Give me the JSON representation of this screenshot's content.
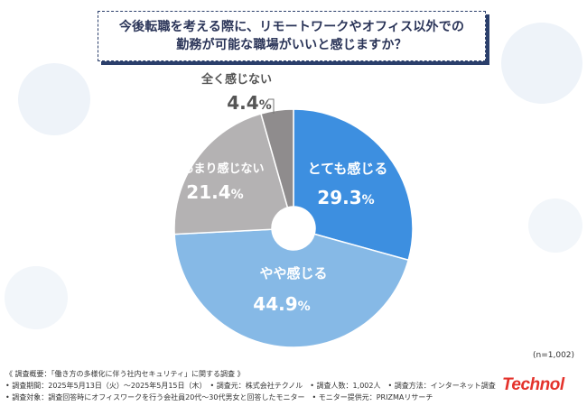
{
  "question": {
    "line1": "今後転職を考える際に、リモートワークやオフィス以外での",
    "line2": "勤務が可能な職場がいいと感じますか？"
  },
  "chart_data": {
    "type": "pie",
    "donut": true,
    "unit": "%",
    "slices": [
      {
        "label": "とても感じる",
        "value": 29.3,
        "color": "#3d8fe0"
      },
      {
        "label": "やや感じる",
        "value": 44.9,
        "color": "#86b9e6"
      },
      {
        "label": "あまり感じない",
        "value": 21.4,
        "color": "#b4b2b3"
      },
      {
        "label": "全く感じない",
        "value": 4.4,
        "color": "#8f8c8d"
      }
    ],
    "sample_note": "(n=1,002)"
  },
  "footer": {
    "line1": "《 調査概要：「働き方の多様化に伴う社内セキュリティ」に関する調査 》",
    "line2": "• 調査期間：2025年5月13日（火）～2025年5月15日（木）　• 調査元：株式会社テクノル　• 調査人数：1,002人　• 調査方法：インターネット調査",
    "line3": "• 調査対象：調査回答時にオフィスワークを行う会社員20代～30代男女と回答したモニター　• モニター提供元：PRIZMAリサーチ"
  },
  "brand": "Technol"
}
